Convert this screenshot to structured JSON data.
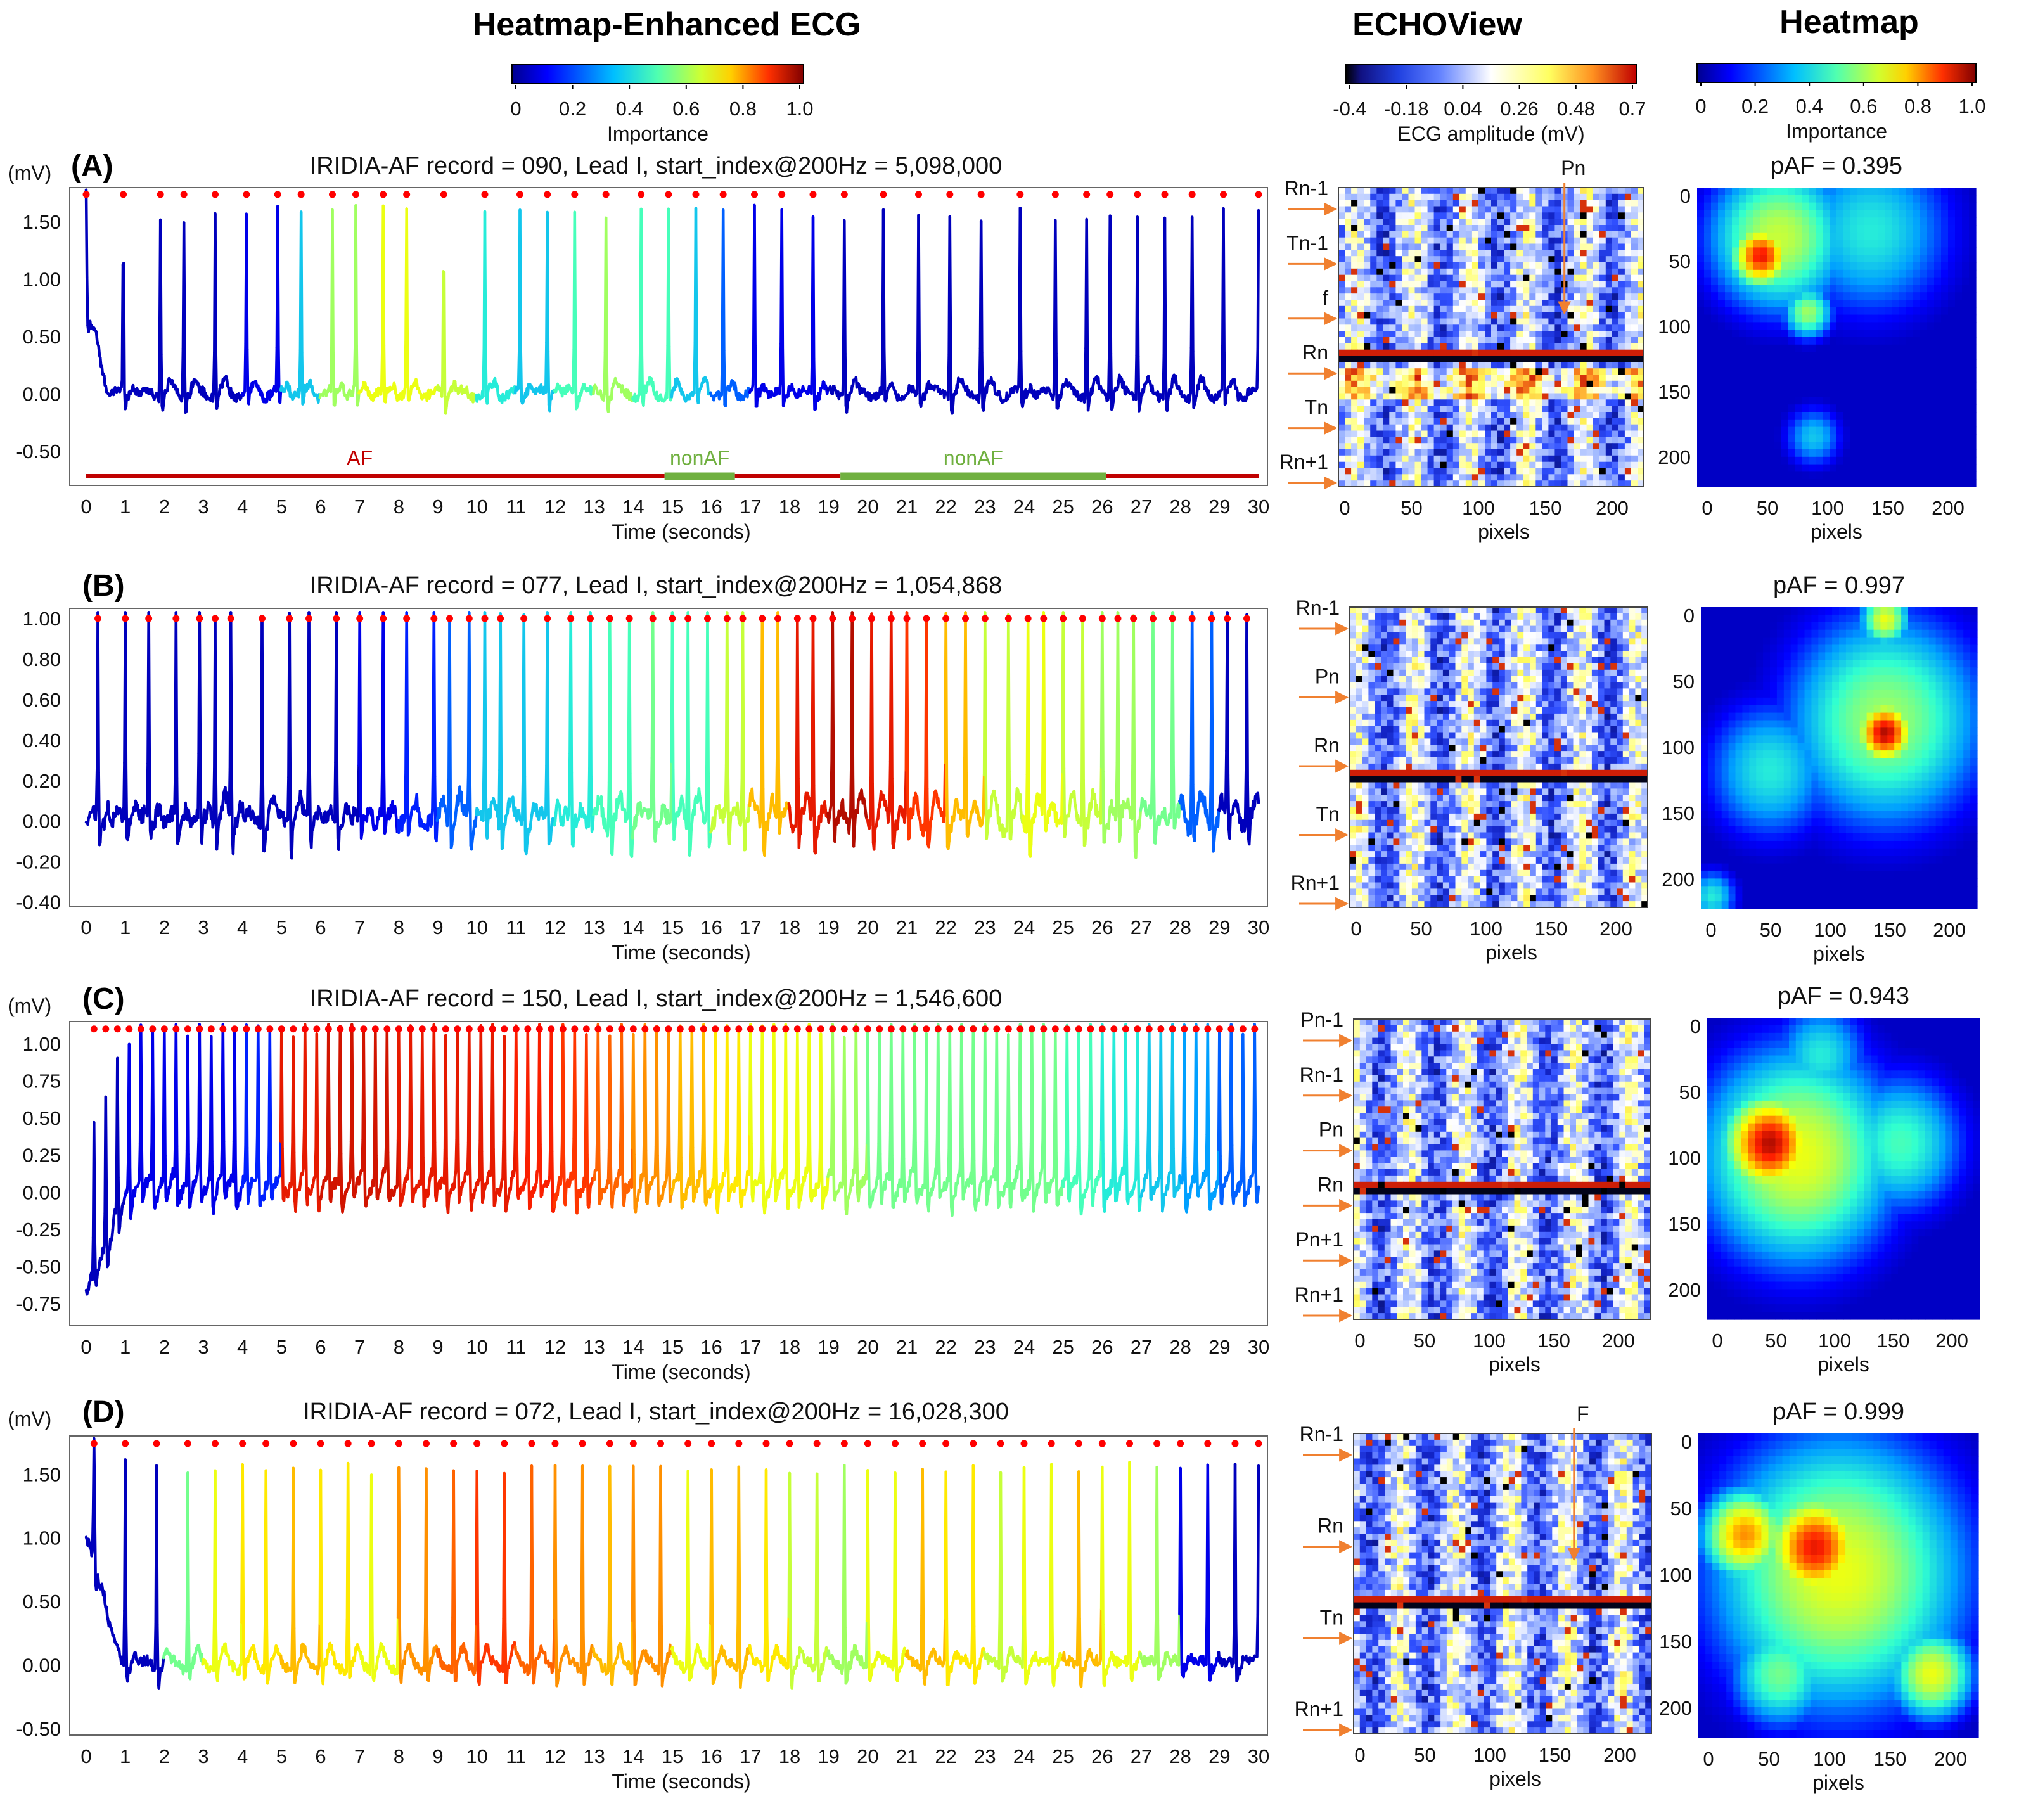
{
  "headers": {
    "ecg": "Heatmap-Enhanced ECG",
    "echo": "ECHOView",
    "heatmap": "Heatmap"
  },
  "colorbars": {
    "importance_ecg": {
      "ticks": [
        "0",
        "0.2",
        "0.4",
        "0.6",
        "0.8",
        "1.0"
      ],
      "label": "Importance"
    },
    "echo": {
      "ticks": [
        "-0.4",
        "-0.18",
        "0.04",
        "0.26",
        "0.48",
        "0.7"
      ],
      "label": "ECG amplitude (mV)"
    },
    "importance_heat": {
      "ticks": [
        "0",
        "0.2",
        "0.4",
        "0.6",
        "0.8",
        "1.0"
      ],
      "label": "Importance"
    }
  },
  "common": {
    "mv_unit": "(mV)",
    "time_label": "Time (seconds)",
    "pixels_label": "pixels",
    "x_ticks": [
      "0",
      "1",
      "2",
      "3",
      "4",
      "5",
      "6",
      "7",
      "8",
      "9",
      "10",
      "11",
      "12",
      "13",
      "14",
      "15",
      "16",
      "17",
      "18",
      "19",
      "20",
      "21",
      "22",
      "23",
      "24",
      "25",
      "26",
      "27",
      "28",
      "29",
      "30"
    ],
    "pixel_ticks": [
      "0",
      "50",
      "100",
      "150",
      "200"
    ],
    "heat_y_ticks": [
      "0",
      "50",
      "100",
      "150",
      "200"
    ]
  },
  "colors": {
    "cmap": [
      "#00008f",
      "#0000ff",
      "#00a0ff",
      "#30ffd0",
      "#a0ff60",
      "#ffff00",
      "#ff9000",
      "#ff2000",
      "#800000"
    ],
    "echo_cmap": [
      "#000000",
      "#1020c0",
      "#3050ff",
      "#a0b8ff",
      "#ffffff",
      "#ffff60",
      "#ff9020",
      "#c00000"
    ],
    "arrow": "#f08030",
    "af_bar": "#c00000",
    "nonaf_bar": "#70b040",
    "rpeak": "#ff0000"
  },
  "chart_data": [
    {
      "id": "A",
      "type": "line",
      "tag": "(A)",
      "title": "IRIDIA-AF record = 090, Lead I, start_index@200Hz = 5,098,000",
      "xlabel": "Time (seconds)",
      "ylabel": "(mV)",
      "xlim": [
        0,
        30
      ],
      "ylim": [
        -0.8,
        1.8
      ],
      "y_ticks": [
        "1.50",
        "1.00",
        "0.50",
        "0.00",
        "-0.50"
      ],
      "y_tick_values": [
        1.5,
        1.0,
        0.5,
        0.0,
        -0.5
      ],
      "r_peaks_s": [
        0.0,
        0.95,
        1.9,
        2.5,
        3.3,
        4.1,
        4.9,
        5.5,
        6.3,
        6.9,
        7.6,
        8.2,
        9.15,
        10.2,
        11.1,
        11.8,
        12.5,
        13.3,
        14.2,
        14.9,
        15.6,
        16.3,
        17.1,
        17.8,
        18.6,
        19.4,
        20.4,
        21.3,
        22.1,
        22.9,
        23.9,
        24.8,
        25.6,
        26.2,
        26.9,
        27.6,
        28.3,
        29.1,
        30.0
      ],
      "importance_by_second": [
        0.05,
        0.05,
        0.05,
        0.05,
        0.1,
        0.3,
        0.5,
        0.6,
        0.6,
        0.55,
        0.35,
        0.3,
        0.4,
        0.5,
        0.4,
        0.3,
        0.2,
        0.1,
        0.1,
        0.05,
        0.05,
        0.05,
        0.05,
        0.05,
        0.05,
        0.05,
        0.05,
        0.05,
        0.05,
        0.05
      ],
      "rhythm_segments": [
        {
          "label": "AF",
          "start": 0,
          "end": 14.8,
          "kind": "AF"
        },
        {
          "label": "nonAF",
          "start": 14.8,
          "end": 16.6,
          "kind": "nonAF"
        },
        {
          "label": "",
          "start": 16.6,
          "end": 19.3,
          "kind": "AF"
        },
        {
          "label": "nonAF",
          "start": 19.3,
          "end": 26.1,
          "kind": "nonAF"
        },
        {
          "label": "",
          "start": 26.1,
          "end": 30,
          "kind": "AF"
        }
      ],
      "rhythm_level_mv": -0.72,
      "echo_labels": [
        "Rn-1",
        "Tn-1",
        "f",
        "Rn",
        "Tn",
        "Rn+1"
      ],
      "echo_top_labels": [
        "Pn"
      ],
      "paf_text": "pAF = 0.395",
      "heat_blobs": [
        {
          "x": 70,
          "y": 40,
          "v": 0.55,
          "s": 42
        },
        {
          "x": 55,
          "y": 55,
          "v": 0.9,
          "s": 18
        },
        {
          "x": 150,
          "y": 35,
          "v": 0.35,
          "s": 50
        },
        {
          "x": 95,
          "y": 100,
          "v": 0.5,
          "s": 15
        },
        {
          "x": 100,
          "y": 200,
          "v": 0.3,
          "s": 18
        }
      ]
    },
    {
      "id": "B",
      "type": "line",
      "tag": "(B)",
      "title": "IRIDIA-AF record = 077, Lead I, start_index@200Hz = 1,054,868",
      "xlabel": "Time (seconds)",
      "ylabel": "",
      "xlim": [
        0,
        30
      ],
      "ylim": [
        -0.42,
        1.05
      ],
      "y_ticks": [
        "1.00",
        "0.80",
        "0.60",
        "0.40",
        "0.20",
        "0.00",
        "-0.20",
        "-0.40"
      ],
      "y_tick_values": [
        1.0,
        0.8,
        0.6,
        0.4,
        0.2,
        0.0,
        -0.2,
        -0.4
      ],
      "r_peaks_s": [
        0.3,
        1.0,
        1.6,
        2.3,
        2.9,
        3.3,
        3.7,
        4.5,
        5.2,
        5.7,
        6.4,
        7.0,
        7.6,
        8.2,
        8.9,
        9.3,
        9.8,
        10.2,
        10.6,
        11.2,
        11.8,
        12.4,
        12.9,
        13.4,
        13.9,
        14.5,
        15.0,
        15.4,
        15.9,
        16.4,
        16.8,
        17.3,
        17.7,
        18.2,
        18.6,
        19.1,
        19.6,
        20.1,
        20.6,
        21.0,
        21.5,
        22.0,
        22.5,
        23.0,
        23.6,
        24.1,
        24.5,
        25.0,
        25.5,
        26.0,
        26.4,
        26.8,
        27.3,
        27.8,
        28.3,
        28.8,
        29.2,
        29.7
      ],
      "importance_by_second": [
        0.05,
        0.05,
        0.05,
        0.05,
        0.05,
        0.05,
        0.05,
        0.1,
        0.15,
        0.2,
        0.3,
        0.3,
        0.35,
        0.4,
        0.45,
        0.4,
        0.55,
        0.7,
        0.9,
        0.95,
        0.9,
        0.85,
        0.7,
        0.55,
        0.6,
        0.55,
        0.5,
        0.45,
        0.2,
        0.05
      ],
      "rhythm_segments": [],
      "echo_labels": [
        "Rn-1",
        "Pn",
        "Rn",
        "Tn",
        "Rn+1"
      ],
      "echo_top_labels": [],
      "paf_text": "pAF = 0.997",
      "heat_blobs": [
        {
          "x": 160,
          "y": 90,
          "v": 0.5,
          "s": 60
        },
        {
          "x": 160,
          "y": 100,
          "v": 0.95,
          "s": 18
        },
        {
          "x": 60,
          "y": 130,
          "v": 0.35,
          "s": 40
        },
        {
          "x": 160,
          "y": 10,
          "v": 0.6,
          "s": 15
        },
        {
          "x": 10,
          "y": 230,
          "v": 0.35,
          "s": 15
        }
      ]
    },
    {
      "id": "C",
      "type": "line",
      "tag": "(C)",
      "title": "IRIDIA-AF record = 150, Lead I, start_index@200Hz = 1,546,600",
      "xlabel": "Time (seconds)",
      "ylabel": "(mV)",
      "xlim": [
        0,
        30
      ],
      "ylim": [
        -0.9,
        1.15
      ],
      "y_ticks": [
        "1.00",
        "0.75",
        "0.50",
        "0.25",
        "0.00",
        "-0.25",
        "-0.50",
        "-0.75"
      ],
      "y_tick_values": [
        1.0,
        0.75,
        0.5,
        0.25,
        0.0,
        -0.25,
        -0.5,
        -0.75
      ],
      "r_peaks_s": [
        0.2,
        0.5,
        0.8,
        1.1,
        1.4,
        1.7,
        2.0,
        2.3,
        2.6,
        2.9,
        3.2,
        3.5,
        3.8,
        4.1,
        4.4,
        4.7,
        5.0,
        5.3,
        5.6,
        5.9,
        6.2,
        6.5,
        6.8,
        7.1,
        7.4,
        7.7,
        8.0,
        8.3,
        8.6,
        8.9,
        9.2,
        9.5,
        9.8,
        10.1,
        10.4,
        10.7,
        11.0,
        11.3,
        11.6,
        11.9,
        12.2,
        12.5,
        12.8,
        13.1,
        13.4,
        13.7,
        14.0,
        14.3,
        14.6,
        14.9,
        15.2,
        15.5,
        15.8,
        16.1,
        16.4,
        16.7,
        17.0,
        17.3,
        17.6,
        17.9,
        18.2,
        18.5,
        18.8,
        19.1,
        19.4,
        19.7,
        20.0,
        20.3,
        20.6,
        20.9,
        21.2,
        21.5,
        21.8,
        22.1,
        22.4,
        22.7,
        23.0,
        23.3,
        23.6,
        23.9,
        24.2,
        24.5,
        24.8,
        25.1,
        25.4,
        25.7,
        26.0,
        26.3,
        26.6,
        26.9,
        27.2,
        27.5,
        27.8,
        28.1,
        28.4,
        28.7,
        29.0,
        29.3,
        29.6,
        29.9
      ],
      "importance_by_second": [
        0.05,
        0.1,
        0.1,
        0.1,
        0.15,
        0.9,
        0.92,
        0.92,
        0.9,
        0.9,
        0.9,
        0.88,
        0.85,
        0.8,
        0.75,
        0.7,
        0.65,
        0.6,
        0.6,
        0.5,
        0.45,
        0.45,
        0.45,
        0.45,
        0.45,
        0.4,
        0.35,
        0.3,
        0.25,
        0.2
      ],
      "rhythm_segments": [],
      "echo_labels": [
        "Pn-1",
        "Rn-1",
        "Pn",
        "Rn",
        "Pn+1",
        "Rn+1"
      ],
      "echo_top_labels": [],
      "paf_text": "pAF = 0.943",
      "heat_blobs": [
        {
          "x": 80,
          "y": 110,
          "v": 0.6,
          "s": 60
        },
        {
          "x": 55,
          "y": 100,
          "v": 0.95,
          "s": 28
        },
        {
          "x": 170,
          "y": 100,
          "v": 0.4,
          "s": 40
        },
        {
          "x": 100,
          "y": 30,
          "v": 0.35,
          "s": 30
        }
      ]
    },
    {
      "id": "D",
      "type": "line",
      "tag": "(D)",
      "title": "IRIDIA-AF record = 072, Lead I, start_index@200Hz = 16,028,300",
      "xlabel": "Time (seconds)",
      "ylabel": "(mV)",
      "xlim": [
        0,
        30
      ],
      "ylim": [
        -0.55,
        1.8
      ],
      "y_ticks": [
        "1.50",
        "1.00",
        "0.50",
        "0.00",
        "-0.50"
      ],
      "y_tick_values": [
        1.5,
        1.0,
        0.5,
        0.0,
        -0.5
      ],
      "r_peaks_s": [
        0.2,
        1.0,
        1.8,
        2.6,
        3.3,
        4.0,
        4.6,
        5.3,
        6.0,
        6.7,
        7.3,
        8.0,
        8.7,
        9.4,
        10.0,
        10.7,
        11.4,
        12.0,
        12.7,
        13.4,
        14.0,
        14.7,
        15.4,
        16.0,
        16.7,
        17.4,
        18.0,
        18.7,
        19.4,
        20.0,
        20.7,
        21.4,
        22.0,
        22.7,
        23.4,
        24.0,
        24.7,
        25.4,
        26.0,
        26.7,
        27.4,
        28.0,
        28.7,
        29.4,
        30.0
      ],
      "importance_by_second": [
        0.05,
        0.05,
        0.45,
        0.6,
        0.65,
        0.7,
        0.65,
        0.6,
        0.75,
        0.8,
        0.85,
        0.8,
        0.75,
        0.7,
        0.75,
        0.6,
        0.7,
        0.65,
        0.55,
        0.5,
        0.6,
        0.7,
        0.65,
        0.55,
        0.6,
        0.7,
        0.6,
        0.5,
        0.1,
        0.05
      ],
      "rhythm_segments": [],
      "echo_labels": [
        "Rn-1",
        "Rn",
        "Tn",
        "Rn+1"
      ],
      "echo_top_labels": [
        "F"
      ],
      "paf_text": "pAF = 0.999",
      "heat_blobs": [
        {
          "x": 120,
          "y": 110,
          "v": 0.6,
          "s": 75
        },
        {
          "x": 100,
          "y": 90,
          "v": 0.9,
          "s": 30
        },
        {
          "x": 40,
          "y": 80,
          "v": 0.75,
          "s": 25
        },
        {
          "x": 200,
          "y": 190,
          "v": 0.6,
          "s": 25
        },
        {
          "x": 70,
          "y": 190,
          "v": 0.45,
          "s": 30
        },
        {
          "x": 120,
          "y": 10,
          "v": 0.15,
          "s": 30
        }
      ]
    }
  ]
}
